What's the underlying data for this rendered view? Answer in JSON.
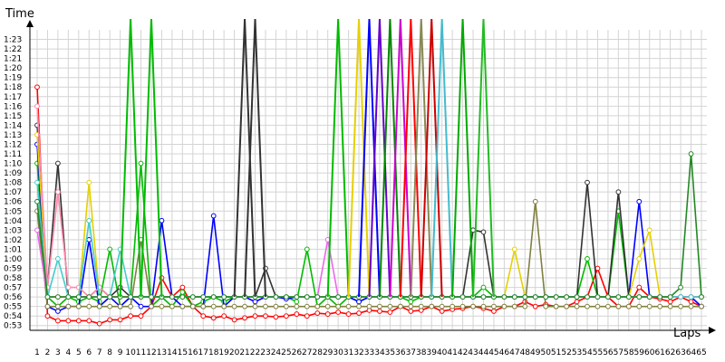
{
  "chart_data": {
    "type": "line",
    "title": "",
    "ylabel": "Time",
    "xlabel": "Laps",
    "x_range": [
      1,
      65
    ],
    "y_range": [
      "0:52.5",
      "1:24"
    ],
    "y_ticks": [
      "0:53",
      "0:54",
      "0:55",
      "0:56",
      "0:57",
      "0:58",
      "0:59",
      "1:00",
      "1:01",
      "1:02",
      "1:03",
      "1:04",
      "1:05",
      "1:06",
      "1:07",
      "1:08",
      "1:09",
      "1:10",
      "1:11",
      "1:12",
      "1:13",
      "1:14",
      "1:15",
      "1:16",
      "1:17",
      "1:18",
      "1:19",
      "1:20",
      "1:21",
      "1:22",
      "1:23"
    ],
    "x_ticks": [
      1,
      2,
      3,
      4,
      5,
      6,
      7,
      8,
      9,
      10,
      11,
      12,
      13,
      14,
      15,
      16,
      17,
      18,
      19,
      20,
      21,
      22,
      23,
      24,
      25,
      26,
      27,
      28,
      29,
      30,
      31,
      32,
      33,
      34,
      35,
      36,
      37,
      38,
      39,
      40,
      41,
      42,
      43,
      44,
      45,
      46,
      47,
      48,
      49,
      50,
      51,
      52,
      53,
      54,
      55,
      56,
      57,
      58,
      59,
      60,
      61,
      62,
      63,
      64,
      65
    ],
    "grid": true,
    "legend": "none",
    "y_unit": "seconds",
    "series": [
      {
        "color": "#ff0000",
        "values": [
          78,
          54,
          53.5,
          53.5,
          53.5,
          53.5,
          53.2,
          53.6,
          53.6,
          54,
          54,
          55,
          58,
          56,
          57,
          55,
          54,
          53.8,
          54,
          53.6,
          53.8,
          54,
          54,
          53.9,
          54,
          54.2,
          54,
          54.3,
          54.2,
          54.4,
          54.2,
          54.3,
          54.6,
          54.5,
          54.4,
          55,
          54.5,
          54.6,
          55,
          54.5,
          54.7,
          54.8,
          55,
          54.8,
          54.5,
          55,
          55,
          55.5,
          55,
          55.2,
          55,
          55,
          55.5,
          56,
          59,
          56,
          55,
          55,
          57,
          56,
          55.8,
          55.5,
          56,
          55.5,
          55
        ]
      },
      {
        "color": "#00bb00",
        "values": [
          70,
          56,
          55,
          56,
          55.5,
          56,
          55.5,
          61,
          55,
          56,
          70,
          55,
          56,
          55,
          56.5,
          55,
          55.5,
          56,
          55.5,
          56,
          56,
          56,
          56,
          56,
          56,
          55.5,
          61,
          55,
          56,
          55,
          56,
          55.5,
          56,
          56,
          56,
          56,
          55.5,
          56,
          56,
          56,
          56,
          56,
          56,
          57,
          56,
          56,
          56,
          56,
          56,
          56,
          56,
          56,
          56,
          60,
          56,
          56,
          65,
          56,
          56,
          56,
          56,
          56,
          56,
          56,
          56
        ]
      },
      {
        "color": "#0000ff",
        "values": [
          72,
          55,
          54.5,
          55,
          55,
          62,
          55,
          56,
          55,
          56,
          55,
          55,
          64,
          56,
          55,
          55,
          55,
          64.5,
          55,
          56,
          56,
          55.5,
          56,
          56,
          55.8,
          56,
          56,
          56,
          56,
          56,
          56,
          55.5,
          56,
          56,
          56,
          56,
          56,
          56,
          56,
          56,
          56,
          56,
          56,
          56,
          56,
          56,
          56,
          56,
          56,
          56,
          56,
          56,
          56,
          56,
          56,
          56,
          56,
          56,
          66,
          56,
          56,
          56,
          56,
          56,
          55
        ]
      },
      {
        "color": "#333333",
        "values": [
          74,
          57,
          70,
          56,
          56,
          56,
          57,
          56,
          57,
          56,
          56,
          56,
          56,
          56,
          56,
          56,
          56,
          56,
          56,
          56,
          56,
          56,
          59,
          56,
          56,
          56,
          56,
          56,
          56,
          56,
          56,
          56,
          56,
          56,
          56,
          56,
          56,
          56,
          56,
          56,
          56,
          56,
          63,
          62.8,
          56,
          56,
          56,
          56,
          56,
          56,
          56,
          56,
          56,
          68,
          56,
          56,
          67,
          56,
          56,
          56,
          56,
          56,
          56,
          56,
          56
        ]
      },
      {
        "color": "#e6d000",
        "values": [
          73,
          56,
          56,
          56,
          56,
          68,
          56,
          56,
          56,
          56,
          56,
          56,
          56,
          56,
          56,
          56,
          56,
          56,
          56,
          56,
          56,
          56,
          56,
          56,
          56,
          56,
          56,
          56,
          56,
          56,
          56,
          56,
          56,
          56,
          56,
          56,
          56,
          56,
          56,
          56,
          56,
          56,
          56,
          56,
          56,
          56,
          61,
          56,
          56,
          56,
          56,
          56,
          56,
          56,
          56,
          56,
          56,
          56,
          60,
          63,
          56,
          56,
          56,
          56,
          56
        ]
      },
      {
        "color": "#ff88aa",
        "values": [
          76,
          57,
          67,
          57,
          57,
          56,
          57,
          56,
          56,
          56,
          56,
          56,
          56,
          56,
          56,
          56,
          56,
          56,
          56,
          56,
          56,
          56,
          56,
          56,
          56,
          56,
          56,
          56,
          56,
          56,
          56,
          56,
          56,
          56,
          56,
          56,
          56,
          56,
          56,
          56,
          56,
          56,
          56,
          56,
          56,
          56,
          56,
          56,
          56,
          56,
          56,
          56,
          56,
          56,
          56,
          56,
          56,
          56,
          56,
          56,
          56,
          56,
          56,
          56,
          56
        ]
      },
      {
        "color": "#808040",
        "values": [
          65,
          55,
          55,
          55,
          55,
          55,
          55,
          55,
          55,
          55,
          62,
          55,
          55,
          55,
          55,
          55,
          55,
          55,
          55,
          55,
          55,
          55,
          55,
          55,
          55,
          55,
          55,
          55,
          55,
          55,
          55,
          55,
          55,
          55,
          55,
          55,
          55,
          55,
          55,
          55,
          55,
          55,
          55,
          55,
          55,
          55,
          55,
          55,
          66,
          55,
          55,
          55,
          55,
          55,
          55,
          55,
          55,
          55,
          55,
          55,
          55,
          55,
          55,
          55,
          55
        ]
      },
      {
        "color": "#ee66ee",
        "values": [
          63,
          56,
          56,
          56,
          56,
          56,
          56,
          56,
          56,
          56,
          56,
          56,
          56,
          56,
          56,
          56,
          56,
          56,
          56,
          56,
          56,
          56,
          56,
          56,
          56,
          56,
          56,
          56,
          62,
          56,
          56,
          56,
          56,
          56,
          56,
          56,
          56,
          56,
          56,
          56,
          56,
          56,
          56,
          56,
          56,
          56,
          56,
          56,
          56,
          56,
          56,
          56,
          56,
          56,
          56,
          56,
          56,
          56,
          56,
          56,
          56,
          56,
          56,
          56,
          56
        ]
      },
      {
        "color": "#44cccc",
        "values": [
          68,
          56,
          60,
          56,
          56,
          64,
          56,
          56,
          61,
          56,
          56,
          56,
          56,
          56,
          56,
          56,
          56,
          56,
          56,
          56,
          56,
          56,
          56,
          56,
          56,
          56,
          56,
          56,
          56,
          56,
          56,
          56,
          56,
          56,
          56,
          56,
          56,
          56,
          56,
          56,
          56,
          56,
          56,
          56,
          56,
          56,
          56,
          56,
          56,
          56,
          56,
          56,
          56,
          56,
          56,
          56,
          56,
          56,
          56,
          56,
          56,
          56,
          56,
          56,
          56
        ]
      },
      {
        "color": "#228822",
        "values": [
          66,
          56,
          56,
          56,
          56,
          56,
          56,
          56,
          56,
          56,
          56,
          56,
          56,
          56,
          56,
          56,
          56,
          56,
          56,
          56,
          56,
          56,
          56,
          56,
          56,
          56,
          56,
          56,
          56,
          56,
          56,
          56,
          56,
          56,
          56,
          56,
          56,
          56,
          56,
          56,
          56,
          56,
          56,
          56,
          56,
          56,
          56,
          56,
          56,
          56,
          56,
          56,
          56,
          56,
          56,
          56,
          56,
          56,
          56,
          56,
          56,
          56,
          57,
          71,
          56
        ]
      }
    ],
    "spikes": [
      {
        "color": "#00bb00",
        "x": 10
      },
      {
        "color": "#00bb00",
        "x": 12
      },
      {
        "color": "#333333",
        "x": 21
      },
      {
        "color": "#333333",
        "x": 22
      },
      {
        "color": "#00bb00",
        "x": 30
      },
      {
        "color": "#e6d000",
        "x": 32
      },
      {
        "color": "#0000ff",
        "x": 33
      },
      {
        "color": "#6600cc",
        "x": 34
      },
      {
        "color": "#008800",
        "x": 35
      },
      {
        "color": "#cc00cc",
        "x": 36
      },
      {
        "color": "#ff0000",
        "x": 37
      },
      {
        "color": "#888855",
        "x": 38
      },
      {
        "color": "#cc0000",
        "x": 39
      },
      {
        "color": "#44bbcc",
        "x": 40
      },
      {
        "color": "#00aa00",
        "x": 42
      },
      {
        "color": "#22bb22",
        "x": 44
      }
    ]
  }
}
